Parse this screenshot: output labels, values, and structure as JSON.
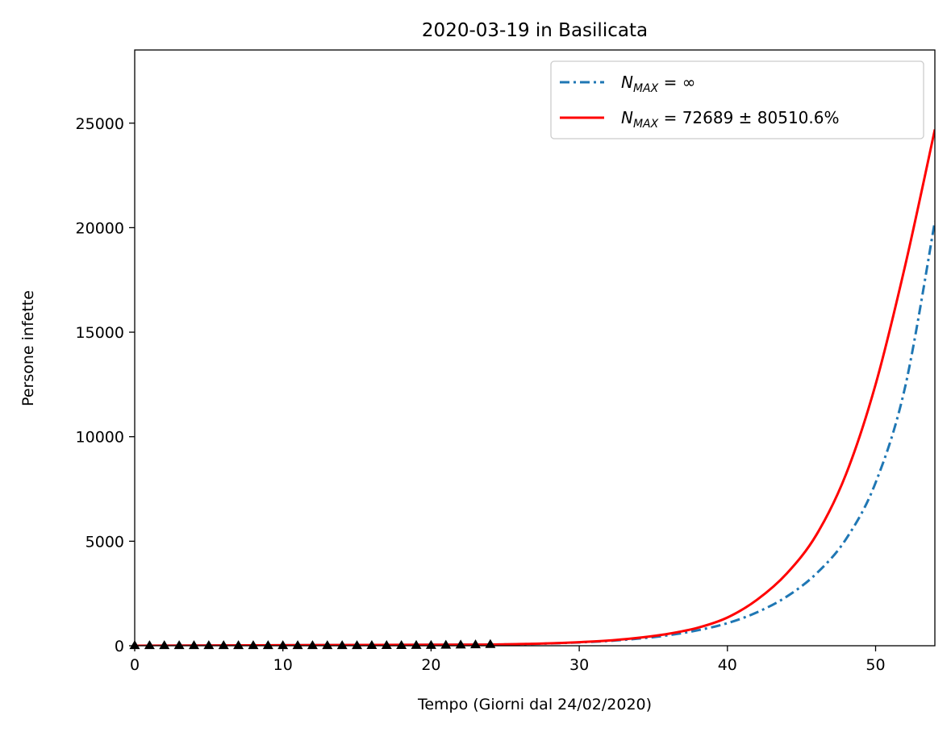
{
  "chart_data": {
    "type": "line",
    "title": "2020-03-19 in Basilicata",
    "xlabel": "Tempo (Giorni dal 24/02/2020)",
    "ylabel": "Persone infette",
    "xlim": [
      0,
      54
    ],
    "ylim": [
      0,
      28500
    ],
    "xticks": [
      0,
      10,
      20,
      30,
      40,
      50
    ],
    "yticks": [
      0,
      5000,
      10000,
      15000,
      20000,
      25000
    ],
    "grid": false,
    "legend_position": "top-right",
    "series": [
      {
        "name": "N_MAX = ∞",
        "legend_main": "N",
        "legend_sub": "MAX",
        "legend_rest": " = ∞",
        "style": "dashdot",
        "color": "#1f77b4",
        "x": [
          24,
          26,
          28,
          30,
          32,
          34,
          36,
          38,
          40,
          42,
          44,
          46,
          48,
          50,
          52,
          54
        ],
        "y": [
          55,
          75,
          110,
          160,
          230,
          340,
          500,
          740,
          1080,
          1600,
          2350,
          3450,
          5100,
          7800,
          12400,
          20300
        ]
      },
      {
        "name": "N_MAX = 72689 ± 80510.6%",
        "legend_main": "N",
        "legend_sub": "MAX",
        "legend_rest": " = 72689 ± 80510.6%",
        "style": "solid",
        "color": "#ff0000",
        "x": [
          24,
          26,
          28,
          30,
          32,
          34,
          36,
          38,
          40,
          42,
          44,
          46,
          48,
          50,
          52,
          54
        ],
        "y": [
          55,
          80,
          115,
          170,
          250,
          380,
          570,
          860,
          1350,
          2200,
          3450,
          5300,
          8200,
          12500,
          18200,
          24700
        ]
      },
      {
        "name": "data",
        "style": "markers",
        "marker": "triangle-up",
        "color": "#000000",
        "x": [
          0,
          1,
          2,
          3,
          4,
          5,
          6,
          7,
          8,
          9,
          10,
          11,
          12,
          13,
          14,
          15,
          16,
          17,
          18,
          19,
          20,
          21,
          22,
          23,
          24
        ],
        "y": [
          0,
          0,
          0,
          0,
          0,
          0,
          0,
          0,
          0,
          0,
          0,
          0,
          1,
          1,
          1,
          3,
          5,
          6,
          9,
          10,
          11,
          20,
          30,
          40,
          55
        ]
      }
    ]
  }
}
